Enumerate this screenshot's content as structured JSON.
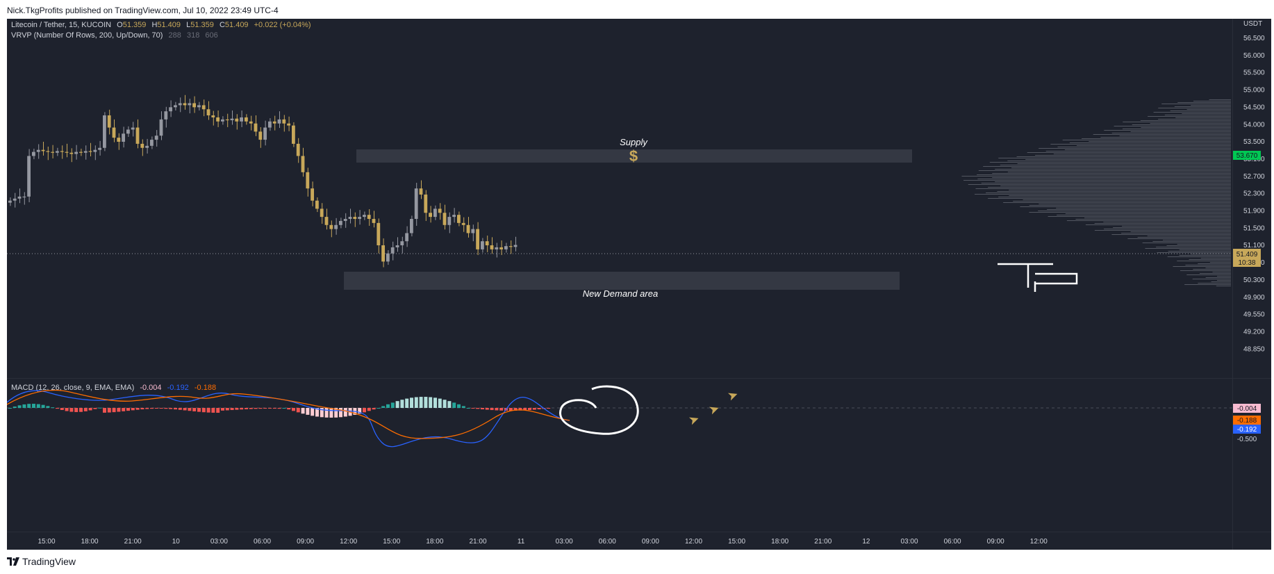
{
  "header": {
    "published_line": "Nick.TkgProfits published on TradingView.com, Jul 10, 2022 23:49 UTC-4"
  },
  "footer": {
    "brand": "TradingView"
  },
  "legend": {
    "symbol": "Litecoin / Tether, 15, KUCOIN",
    "o_label": "O",
    "o_value": "51.359",
    "h_label": "H",
    "h_value": "51.409",
    "l_label": "L",
    "l_value": "51.359",
    "c_label": "C",
    "c_value": "51.409",
    "change": "+0.022 (+0.04%)",
    "vrvp_label": "VRVP (Number Of Rows, 200, Up/Down, 70)",
    "vrvp_v1": "288",
    "vrvp_v2": "318",
    "vrvp_v3": "606"
  },
  "macd_legend": {
    "label": "MACD (12, 26, close, 9, EMA, EMA)",
    "hist": "-0.004",
    "macd": "-0.192",
    "signal": "-0.188"
  },
  "annotations": {
    "supply_label": "Supply",
    "supply_icon": "dollar-icon",
    "demand_label": "New Demand area"
  },
  "colors": {
    "background": "#1e222d",
    "up_candle": "#9598a1",
    "down_candle": "#c8a85a",
    "zone": "#363a45",
    "macd_line": "#2962ff",
    "signal_line": "#ff6d00",
    "hist_pos": "#26a69a",
    "hist_neg": "#ef5350",
    "price_tag": "#c8a85a",
    "target_tag": "#00c853"
  },
  "chart_data": {
    "type": "candlestick",
    "title": "Litecoin / Tether, 15, KUCOIN",
    "currency": "USDT",
    "price_axis_ticks": [
      "56.500",
      "56.000",
      "55.500",
      "55.000",
      "54.500",
      "54.000",
      "53.500",
      "53.100",
      "52.700",
      "52.300",
      "51.900",
      "51.500",
      "51.100",
      "50.700",
      "50.300",
      "49.900",
      "49.550",
      "49.200",
      "48.850"
    ],
    "time_axis_ticks": [
      "15:00",
      "18:00",
      "21:00",
      "10",
      "03:00",
      "06:00",
      "09:00",
      "12:00",
      "15:00",
      "18:00",
      "21:00",
      "11",
      "03:00",
      "06:00",
      "09:00",
      "12:00",
      "15:00",
      "18:00",
      "21:00",
      "12",
      "03:00",
      "06:00",
      "09:00",
      "12:00"
    ],
    "last_price": "51.409",
    "countdown": "10:38",
    "target_price": "53.670",
    "supply_zone": [
      53.55,
      53.85
    ],
    "demand_zone": [
      50.65,
      51.05
    ],
    "close_series": [
      52.5,
      52.55,
      52.6,
      52.6,
      53.6,
      53.7,
      53.75,
      53.72,
      53.7,
      53.68,
      53.72,
      53.7,
      53.68,
      53.65,
      53.7,
      53.68,
      53.72,
      53.7,
      53.75,
      53.8,
      54.6,
      54.3,
      54.05,
      53.95,
      54.15,
      54.25,
      54.3,
      53.9,
      53.8,
      53.85,
      54.0,
      54.1,
      54.5,
      54.7,
      54.8,
      54.85,
      54.9,
      54.85,
      54.9,
      54.8,
      54.85,
      54.75,
      54.6,
      54.55,
      54.45,
      54.5,
      54.48,
      54.52,
      54.45,
      54.55,
      54.45,
      54.4,
      54.2,
      54.0,
      54.3,
      54.45,
      54.4,
      54.5,
      54.4,
      54.35,
      53.9,
      53.6,
      53.2,
      52.8,
      52.5,
      52.3,
      52.1,
      51.9,
      51.8,
      51.9,
      52.0,
      52.05,
      52.1,
      52.05,
      52.1,
      52.15,
      52.05,
      51.95,
      51.4,
      51.0,
      51.2,
      51.35,
      51.4,
      51.5,
      51.7,
      52.05,
      52.8,
      52.65,
      52.2,
      52.1,
      52.3,
      52.2,
      51.9,
      52.1,
      52.15,
      51.95,
      51.9,
      51.7,
      51.8,
      51.3,
      51.5,
      51.4,
      51.3,
      51.35,
      51.3,
      51.38,
      51.36,
      51.409
    ],
    "macd_axis_ticks": [
      "-0.500"
    ],
    "macd_values": {
      "histogram": -0.004,
      "macd": -0.192,
      "signal": -0.188
    },
    "volume_profile": "horizontal volume-by-price bars at right edge",
    "grid": false
  }
}
